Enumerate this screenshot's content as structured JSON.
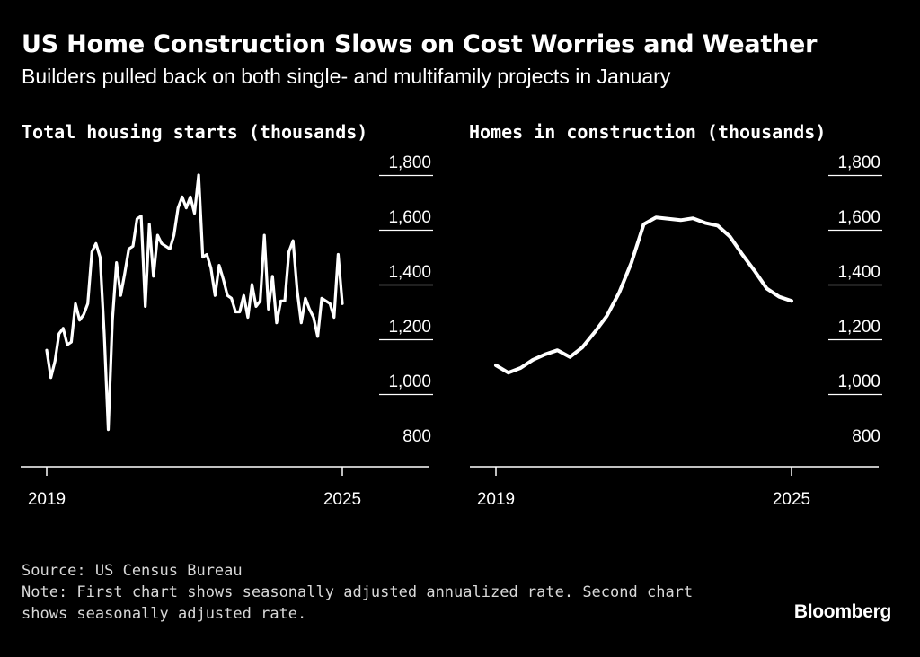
{
  "header": {
    "title": "US Home Construction Slows on Cost Worries and Weather",
    "subtitle": "Builders pulled back on both single- and multifamily projects in January"
  },
  "footer": {
    "source": "Source: US Census Bureau",
    "note_line1": "Note: First chart shows seasonally adjusted annualized rate. Second chart",
    "note_line2": "shows seasonally adjusted rate.",
    "brand": "Bloomberg"
  },
  "colors": {
    "background": "#000000",
    "line": "#ffffff",
    "axis": "#ffffff"
  },
  "chart_data": [
    {
      "type": "line",
      "title": "Total housing starts (thousands)",
      "xlabel": "",
      "ylabel": "",
      "xlim": [
        2019,
        2025.08
      ],
      "ylim": [
        800,
        1800
      ],
      "x_ticks": [
        2019,
        2025
      ],
      "x_tick_labels": [
        "2019",
        "2025"
      ],
      "y_ticks": [
        800,
        1000,
        1200,
        1400,
        1600,
        1800
      ],
      "y_tick_labels": [
        "800",
        "1,000",
        "1,200",
        "1,400",
        "1,600",
        "1,800"
      ],
      "y_axis_side": "right",
      "grid": "horizontal",
      "series": [
        {
          "name": "",
          "x": [
            2019.0,
            2019.083,
            2019.167,
            2019.25,
            2019.333,
            2019.417,
            2019.5,
            2019.583,
            2019.667,
            2019.75,
            2019.833,
            2019.917,
            2020.0,
            2020.083,
            2020.167,
            2020.25,
            2020.333,
            2020.417,
            2020.5,
            2020.583,
            2020.667,
            2020.75,
            2020.833,
            2020.917,
            2021.0,
            2021.083,
            2021.167,
            2021.25,
            2021.333,
            2021.417,
            2021.5,
            2021.583,
            2021.667,
            2021.75,
            2021.833,
            2021.917,
            2022.0,
            2022.083,
            2022.167,
            2022.25,
            2022.333,
            2022.417,
            2022.5,
            2022.583,
            2022.667,
            2022.75,
            2022.833,
            2022.917,
            2023.0,
            2023.083,
            2023.167,
            2023.25,
            2023.333,
            2023.417,
            2023.5,
            2023.583,
            2023.667,
            2023.75,
            2023.833,
            2023.917,
            2024.0,
            2024.083,
            2024.167,
            2024.25,
            2024.333,
            2024.417,
            2024.5,
            2024.583,
            2024.667,
            2024.75,
            2024.833,
            2024.917,
            2025.0
          ],
          "values": [
            1160,
            1060,
            1120,
            1220,
            1240,
            1180,
            1190,
            1330,
            1270,
            1290,
            1330,
            1520,
            1550,
            1500,
            1220,
            870,
            1270,
            1480,
            1360,
            1440,
            1530,
            1540,
            1640,
            1650,
            1320,
            1620,
            1430,
            1580,
            1550,
            1540,
            1530,
            1580,
            1680,
            1720,
            1680,
            1720,
            1660,
            1800,
            1500,
            1510,
            1460,
            1360,
            1470,
            1420,
            1360,
            1350,
            1300,
            1300,
            1360,
            1280,
            1400,
            1320,
            1340,
            1580,
            1310,
            1430,
            1260,
            1340,
            1340,
            1520,
            1560,
            1380,
            1260,
            1350,
            1310,
            1280,
            1210,
            1350,
            1340,
            1330,
            1280,
            1510,
            1330
          ]
        }
      ]
    },
    {
      "type": "line",
      "title": "Homes in construction (thousands)",
      "xlabel": "",
      "ylabel": "",
      "xlim": [
        2019,
        2025.08
      ],
      "ylim": [
        800,
        1800
      ],
      "x_ticks": [
        2019,
        2025
      ],
      "x_tick_labels": [
        "2019",
        "2025"
      ],
      "y_ticks": [
        800,
        1000,
        1200,
        1400,
        1600,
        1800
      ],
      "y_tick_labels": [
        "800",
        "1,000",
        "1,200",
        "1,400",
        "1,600",
        "1,800"
      ],
      "y_axis_side": "right",
      "grid": "horizontal",
      "series": [
        {
          "name": "",
          "x": [
            2019.0,
            2019.25,
            2019.5,
            2019.75,
            2020.0,
            2020.25,
            2020.5,
            2020.75,
            2021.0,
            2021.25,
            2021.5,
            2021.75,
            2022.0,
            2022.25,
            2022.5,
            2022.75,
            2023.0,
            2023.25,
            2023.5,
            2023.75,
            2024.0,
            2024.25,
            2024.5,
            2024.75,
            2025.0
          ],
          "values": [
            1105,
            1078,
            1095,
            1125,
            1145,
            1160,
            1135,
            1170,
            1225,
            1285,
            1370,
            1480,
            1620,
            1645,
            1640,
            1635,
            1642,
            1625,
            1615,
            1575,
            1510,
            1450,
            1385,
            1355,
            1340
          ]
        }
      ]
    }
  ]
}
